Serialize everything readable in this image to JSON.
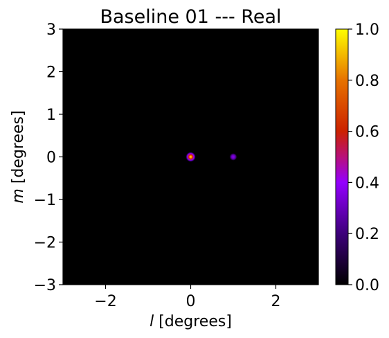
{
  "chart_data": {
    "type": "heatmap",
    "title": "Baseline 01 --- Real",
    "xlabel": {
      "symbol": "l",
      "text": " [degrees]"
    },
    "ylabel": {
      "symbol": "m",
      "text": " [degrees]"
    },
    "xlim": [
      -3,
      3
    ],
    "ylim": [
      -3,
      3
    ],
    "xticks": [
      -2,
      0,
      2
    ],
    "xtick_labels": [
      "−2",
      "0",
      "2"
    ],
    "yticks": [
      -3,
      -2,
      -1,
      0,
      1,
      2,
      3
    ],
    "ytick_labels": [
      "−3",
      "−2",
      "−1",
      "0",
      "1",
      "2",
      "3"
    ],
    "colormap": "gnuplot",
    "colorbar": {
      "range": [
        0,
        1
      ],
      "ticks": [
        0.0,
        0.2,
        0.4,
        0.6,
        0.8,
        1.0
      ],
      "tick_labels": [
        "0.0",
        "0.2",
        "0.4",
        "0.6",
        "0.8",
        "1.0"
      ]
    },
    "background_value": 0.0,
    "sources": [
      {
        "l": 0.0,
        "m": 0.0,
        "peak": 1.0,
        "width_deg": 0.12
      },
      {
        "l": 1.0,
        "m": 0.0,
        "peak": 0.3,
        "width_deg": 0.09
      }
    ],
    "grid": false,
    "colors": {
      "zero": "#000000",
      "low": "#3d007a",
      "mid": "#9400ff",
      "high": "#cc2200",
      "max": "#ffff00"
    }
  }
}
